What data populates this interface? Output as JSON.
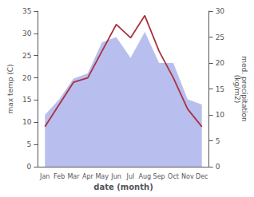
{
  "chart_data": {
    "type": "line",
    "categories": [
      "Jan",
      "Feb",
      "Mar",
      "Apr",
      "May",
      "Jun",
      "Jul",
      "Aug",
      "Sep",
      "Oct",
      "Nov",
      "Dec"
    ],
    "xlabel": "date (month)",
    "ylabel": "max temp (C)",
    "y2label": "med. precipitation\n(kg/m2)",
    "ylim": [
      0,
      35
    ],
    "yticks": [
      0,
      5,
      10,
      15,
      20,
      25,
      30,
      35
    ],
    "y2lim": [
      0,
      30
    ],
    "y2ticks": [
      0,
      5,
      10,
      15,
      20,
      25,
      30
    ],
    "grid": false,
    "series": [
      {
        "type": "area",
        "axis": "y2",
        "color": "#b8bfee",
        "values": [
          10,
          13,
          17,
          18,
          24,
          25,
          21,
          26,
          20,
          20,
          13,
          12
        ]
      },
      {
        "type": "line",
        "color": "#a83240",
        "values": [
          9,
          14,
          19,
          20,
          26,
          32,
          29,
          34,
          26,
          20,
          13,
          9
        ]
      }
    ]
  }
}
